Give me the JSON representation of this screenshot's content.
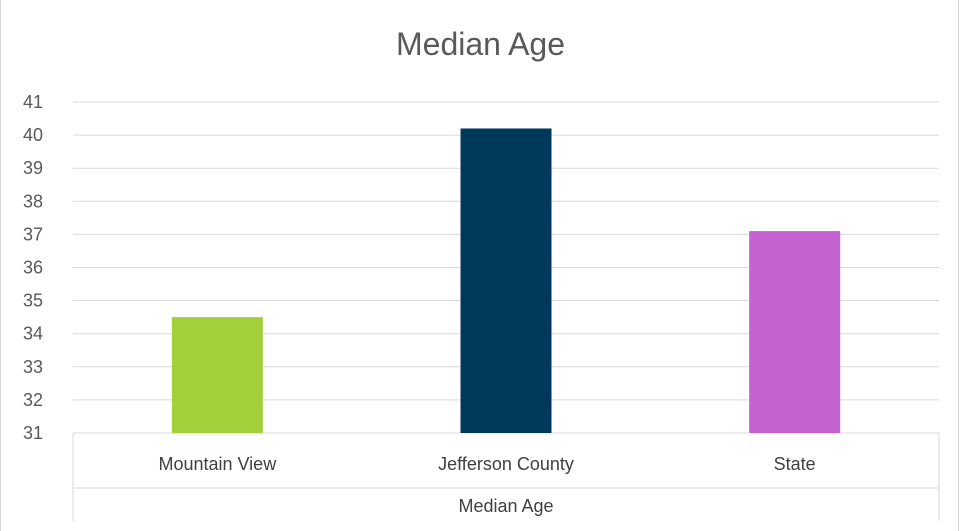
{
  "chart_data": {
    "type": "bar",
    "title": "Median Age",
    "categories": [
      "Mountain View",
      "Jefferson County",
      "State"
    ],
    "values": [
      34.5,
      40.2,
      37.1
    ],
    "colors": [
      "#a2cf3a",
      "#00395a",
      "#c562d1"
    ],
    "group_label": "Median Age",
    "ylim": [
      31,
      41
    ],
    "yticks": [
      31,
      32,
      33,
      34,
      35,
      36,
      37,
      38,
      39,
      40,
      41
    ],
    "grid": true,
    "legend": "none"
  }
}
